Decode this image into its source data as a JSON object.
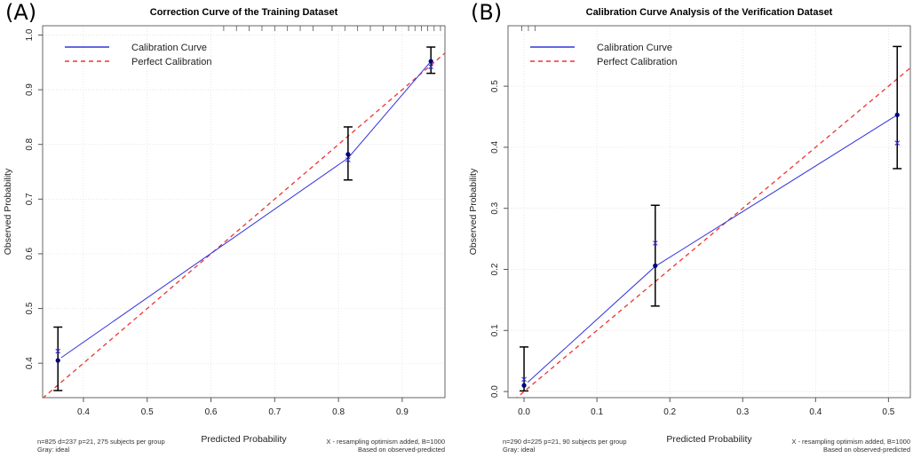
{
  "colors": {
    "calibration": "#3333dd",
    "perfect": "#ee3333",
    "points": "#000080",
    "errorbar": "#000000",
    "grid": "#dddddd"
  },
  "chart_data": [
    {
      "type": "line",
      "panel_label": "(A)",
      "title": "Correction Curve of the Training Dataset",
      "xlabel": "Predicted Probability",
      "ylabel": "Observed Probability",
      "xlim": [
        0.336,
        0.967
      ],
      "ylim": [
        0.337,
        1.017
      ],
      "xticks": [
        0.4,
        0.5,
        0.6,
        0.7,
        0.8,
        0.9
      ],
      "xtick_labels": [
        "0.4",
        "0.5",
        "0.6",
        "0.7",
        "0.8",
        "0.9"
      ],
      "yticks": [
        0.4,
        0.5,
        0.6,
        0.7,
        0.8,
        0.9,
        1.0
      ],
      "ytick_labels": [
        "0.4",
        "0.5",
        "0.6",
        "0.7",
        "0.8",
        "0.9",
        "1.0"
      ],
      "legend": [
        "Calibration Curve",
        "Perfect Calibration"
      ],
      "legend_position": "top-left",
      "points": [
        {
          "x": 0.36,
          "y": 0.405,
          "lo": 0.35,
          "hi": 0.466
        },
        {
          "x": 0.815,
          "y": 0.782,
          "lo": 0.735,
          "hi": 0.832
        },
        {
          "x": 0.945,
          "y": 0.952,
          "lo": 0.93,
          "hi": 0.978
        }
      ],
      "corrected": [
        {
          "x": 0.36,
          "y": 0.422
        },
        {
          "x": 0.815,
          "y": 0.772
        },
        {
          "x": 0.945,
          "y": 0.942
        }
      ],
      "curve": [
        {
          "x": 0.365,
          "y": 0.41
        },
        {
          "x": 0.815,
          "y": 0.775
        },
        {
          "x": 0.945,
          "y": 0.952
        }
      ],
      "rug": [
        0.62,
        0.64,
        0.66,
        0.68,
        0.7,
        0.72,
        0.74,
        0.76,
        0.79,
        0.81,
        0.83,
        0.85,
        0.87,
        0.89,
        0.91,
        0.92,
        0.93,
        0.94,
        0.95,
        0.96
      ],
      "note_left": [
        "n=825 d=237 p=21, 275 subjects per group",
        "Gray: ideal"
      ],
      "note_right": [
        "X - resampling optimism added, B=1000",
        "Based on observed-predicted"
      ]
    },
    {
      "type": "line",
      "panel_label": "(B)",
      "title": "Calibration Curve Analysis of the Verification Dataset",
      "xlabel": "Predicted Probability",
      "ylabel": "Observed Probability",
      "xlim": [
        -0.022,
        0.53
      ],
      "ylim": [
        -0.01,
        0.599
      ],
      "xticks": [
        0.0,
        0.1,
        0.2,
        0.3,
        0.4,
        0.5
      ],
      "xtick_labels": [
        "0.0",
        "0.1",
        "0.2",
        "0.3",
        "0.4",
        "0.5"
      ],
      "yticks": [
        0.0,
        0.1,
        0.2,
        0.3,
        0.4,
        0.5
      ],
      "ytick_labels": [
        "0.0",
        "0.1",
        "0.2",
        "0.3",
        "0.4",
        "0.5"
      ],
      "legend": [
        "Calibration Curve",
        "Perfect Calibration"
      ],
      "legend_position": "top-left",
      "points": [
        {
          "x": 0.0,
          "y": 0.01,
          "lo": 0.001,
          "hi": 0.073
        },
        {
          "x": 0.18,
          "y": 0.206,
          "lo": 0.14,
          "hi": 0.305
        },
        {
          "x": 0.512,
          "y": 0.453,
          "lo": 0.365,
          "hi": 0.565
        }
      ],
      "corrected": [
        {
          "x": 0.0,
          "y": 0.02
        },
        {
          "x": 0.18,
          "y": 0.243
        },
        {
          "x": 0.512,
          "y": 0.407
        }
      ],
      "curve": [
        {
          "x": 0.005,
          "y": 0.015
        },
        {
          "x": 0.18,
          "y": 0.205
        },
        {
          "x": 0.512,
          "y": 0.453
        }
      ],
      "rug": [
        -0.003,
        0.006,
        0.015
      ],
      "note_left": [
        "n=290 d=225 p=21, 90 subjects per group",
        "Gray: ideal"
      ],
      "note_right": [
        "X - resampling optimism added, B=1000",
        "Based on observed-predicted"
      ]
    }
  ]
}
